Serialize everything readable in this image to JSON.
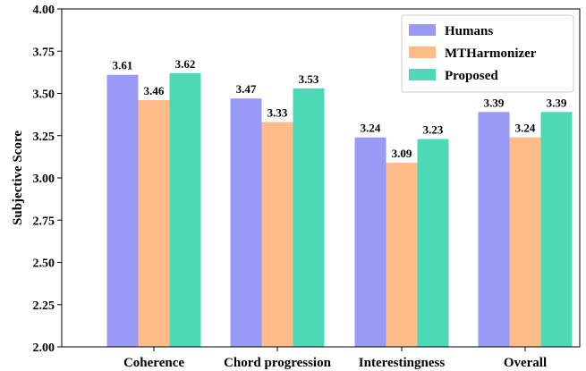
{
  "chart_data": {
    "type": "bar",
    "categories": [
      "Coherence",
      "Chord progression",
      "Interestingness",
      "Overall"
    ],
    "series": [
      {
        "name": "Humans",
        "values": [
          3.61,
          3.47,
          3.24,
          3.39
        ],
        "color": "#9999F6"
      },
      {
        "name": "MTHarmonizer",
        "values": [
          3.46,
          3.33,
          3.09,
          3.24
        ],
        "color": "#FFBB88"
      },
      {
        "name": "Proposed",
        "values": [
          3.62,
          3.53,
          3.23,
          3.39
        ],
        "color": "#4DD9B5"
      }
    ],
    "value_labels": [
      [
        "3.61",
        "3.47",
        "3.24",
        "3.39"
      ],
      [
        "3.46",
        "3.33",
        "3.09",
        "3.24"
      ],
      [
        "3.62",
        "3.53",
        "3.23",
        "3.39"
      ]
    ],
    "ylabel": "Subjective Score",
    "xlabel": "",
    "title": "",
    "ylim": [
      2.0,
      4.0
    ],
    "yticks": [
      "2.00",
      "2.25",
      "2.50",
      "2.75",
      "3.00",
      "3.25",
      "3.50",
      "3.75",
      "4.00"
    ],
    "legend": {
      "position": "top-right"
    },
    "grid": false
  }
}
